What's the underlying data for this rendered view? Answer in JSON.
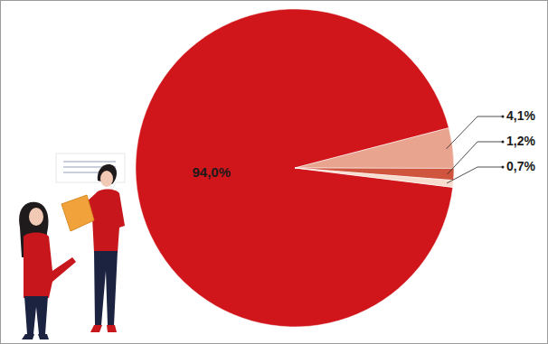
{
  "chart_data": {
    "type": "pie",
    "values": [
      94.0,
      4.1,
      1.2,
      0.7
    ],
    "value_labels": [
      "94,0%",
      "4,1%",
      "1,2%",
      "0,7%"
    ],
    "colors": [
      "#d0161b",
      "#e8a48e",
      "#d0553f",
      "#f7dccd"
    ],
    "data_labels": true
  }
}
